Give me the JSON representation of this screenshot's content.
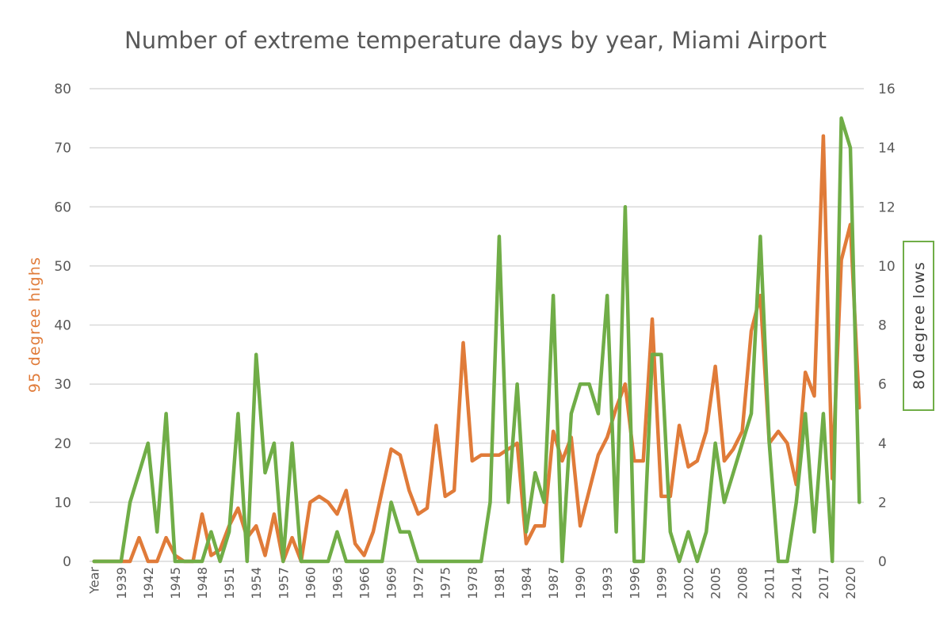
{
  "chart_data": {
    "type": "line",
    "title": "Number of extreme temperature days by year, Miami Airport",
    "ylabel_left": "95 degree highs",
    "ylabel_right": "80 degree lows",
    "ylim_left": [
      0,
      80
    ],
    "ylim_right": [
      0,
      16
    ],
    "yticks_left": [
      "0",
      "10",
      "20",
      "30",
      "40",
      "50",
      "60",
      "70",
      "80"
    ],
    "yticks_right": [
      "0",
      "2",
      "4",
      "6",
      "8",
      "10",
      "12",
      "14",
      "16"
    ],
    "grid": true,
    "colors": {
      "highs": "#e07b39",
      "lows": "#70ad47",
      "grid": "#d9d9d9",
      "text": "#595959"
    },
    "categories": [
      "Year",
      "1937",
      "1938",
      "1939",
      "1940",
      "1941",
      "1942",
      "1943",
      "1944",
      "1945",
      "1946",
      "1947",
      "1948",
      "1949",
      "1950",
      "1951",
      "1952",
      "1953",
      "1954",
      "1955",
      "1956",
      "1957",
      "1958",
      "1959",
      "1960",
      "1961",
      "1962",
      "1963",
      "1964",
      "1965",
      "1966",
      "1967",
      "1968",
      "1969",
      "1970",
      "1971",
      "1972",
      "1973",
      "1974",
      "1975",
      "1976",
      "1977",
      "1978",
      "1979",
      "1980",
      "1981",
      "1982",
      "1983",
      "1984",
      "1985",
      "1986",
      "1987",
      "1988",
      "1989",
      "1990",
      "1991",
      "1992",
      "1993",
      "1994",
      "1995",
      "1996",
      "1997",
      "1998",
      "1999",
      "2000",
      "2001",
      "2002",
      "2003",
      "2004",
      "2005",
      "2006",
      "2007",
      "2008",
      "2009",
      "2010",
      "2011",
      "2012",
      "2013",
      "2014",
      "2015",
      "2016",
      "2017",
      "2018",
      "2019",
      "2020",
      "2021"
    ],
    "tick_labels": [
      "Year",
      "1939",
      "1942",
      "1945",
      "1948",
      "1951",
      "1954",
      "1957",
      "1960",
      "1963",
      "1966",
      "1969",
      "1972",
      "1975",
      "1978",
      "1981",
      "1984",
      "1987",
      "1990",
      "1993",
      "1996",
      "1999",
      "2002",
      "2005",
      "2008",
      "2011",
      "2014",
      "2017",
      "2020"
    ],
    "series": [
      {
        "name": "95 degree highs",
        "axis": "left",
        "values": [
          0,
          0,
          0,
          0,
          0,
          4,
          0,
          0,
          4,
          1,
          0,
          0,
          8,
          1,
          2,
          6,
          9,
          4,
          6,
          1,
          8,
          0,
          4,
          0,
          10,
          11,
          10,
          8,
          12,
          3,
          1,
          5,
          12,
          19,
          18,
          12,
          8,
          9,
          23,
          11,
          12,
          37,
          17,
          18,
          18,
          18,
          19,
          20,
          3,
          6,
          6,
          22,
          17,
          21,
          6,
          12,
          18,
          21,
          26,
          30,
          17,
          17,
          41,
          11,
          11,
          23,
          16,
          17,
          22,
          33,
          17,
          19,
          22,
          39,
          45,
          20,
          22,
          20,
          13,
          32,
          28,
          72,
          14,
          51,
          57,
          26
        ]
      },
      {
        "name": "80 degree lows",
        "axis": "right",
        "values": [
          0,
          0,
          0,
          0,
          2,
          3,
          4,
          1,
          5,
          0,
          0,
          0,
          0,
          1,
          0,
          1,
          5,
          0,
          7,
          3,
          4,
          0,
          4,
          0,
          0,
          0,
          0,
          1,
          0,
          0,
          0,
          0,
          0,
          2,
          1,
          1,
          0,
          0,
          0,
          0,
          0,
          0,
          0,
          0,
          2,
          11,
          2,
          6,
          1,
          3,
          2,
          9,
          0,
          5,
          6,
          6,
          5,
          9,
          1,
          12,
          0,
          0,
          7,
          7,
          1,
          0,
          1,
          0,
          1,
          4,
          2,
          3,
          4,
          5,
          11,
          4,
          0,
          0,
          2,
          5,
          1,
          5,
          0,
          15,
          14,
          2
        ]
      }
    ]
  }
}
